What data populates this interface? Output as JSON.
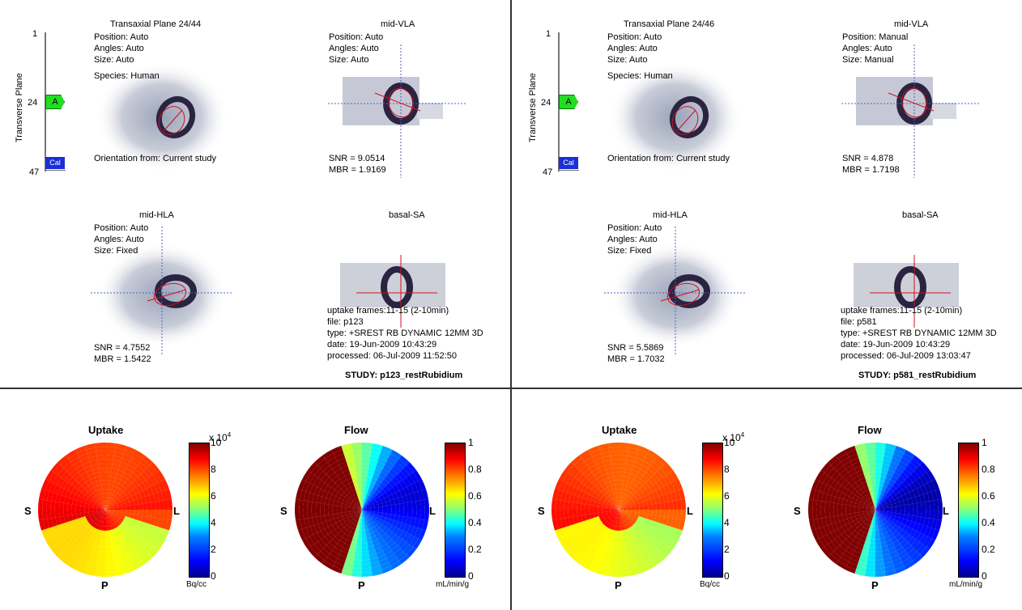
{
  "panels": [
    {
      "slider": {
        "axis_label": "Transverse Plane",
        "top": "1",
        "mid": "24",
        "bottom": "47",
        "marker_a": "A",
        "marker_q": "Cal"
      },
      "transaxial": {
        "title": "Transaxial Plane 24/44",
        "position": "Position: Auto",
        "angles": "Angles: Auto",
        "size": "Size: Auto",
        "species": "Species: Human",
        "orientation": "Orientation from: Current study"
      },
      "vla": {
        "title": "mid-VLA",
        "position": "Position: Auto",
        "angles": "Angles: Auto",
        "size": "Size: Auto",
        "snr": "SNR = 9.0514",
        "mbr": "MBR = 1.9169"
      },
      "hla": {
        "title": "mid-HLA",
        "position": "Position: Auto",
        "angles": "Angles: Auto",
        "size": "Size: Fixed",
        "snr": "SNR = 4.7552",
        "mbr": "MBR = 1.5422"
      },
      "sa": {
        "title": "basal-SA",
        "uptake_frames": "uptake frames:11-15 (2-10min)",
        "file": "file: p123",
        "type": "type: +SREST RB DYNAMIC 12MM 3D",
        "date": "date: 19-Jun-2009 10:43:29",
        "processed": "processed: 06-Jul-2009 11:52:50",
        "study": "STUDY: p123_restRubidium"
      },
      "uptake": {
        "title": "Uptake",
        "exp": "x 10",
        "exp_pow": "4",
        "ticks": [
          "10",
          "8",
          "6",
          "4",
          "2",
          "0"
        ],
        "unit": "Bq/cc"
      },
      "flow": {
        "title": "Flow",
        "ticks": [
          "1",
          "0.8",
          "0.6",
          "0.4",
          "0.2",
          "0"
        ],
        "unit": "mL/min/g"
      },
      "orient": {
        "s": "S",
        "l": "L",
        "p": "P"
      }
    },
    {
      "slider": {
        "axis_label": "Transverse Plane",
        "top": "1",
        "mid": "24",
        "bottom": "47",
        "marker_a": "A",
        "marker_q": "Cal"
      },
      "transaxial": {
        "title": "Transaxial Plane 24/46",
        "position": "Position: Auto",
        "angles": "Angles: Auto",
        "size": "Size: Auto",
        "species": "Species: Human",
        "orientation": "Orientation from: Current study"
      },
      "vla": {
        "title": "mid-VLA",
        "position": "Position: Manual",
        "angles": "Angles: Auto",
        "size": "Size: Manual",
        "snr": "SNR = 4.878",
        "mbr": "MBR = 1.7198"
      },
      "hla": {
        "title": "mid-HLA",
        "position": "Position: Auto",
        "angles": "Angles: Auto",
        "size": "Size: Fixed",
        "snr": "SNR = 5.5869",
        "mbr": "MBR = 1.7032"
      },
      "sa": {
        "title": "basal-SA",
        "uptake_frames": "uptake frames:11-15 (2-10min)",
        "file": "file: p581",
        "type": "type: +SREST RB DYNAMIC 12MM 3D",
        "date": "date: 19-Jun-2009 10:43:29",
        "processed": "processed: 06-Jul-2009 13:03:47",
        "study": "STUDY: p581_restRubidium"
      },
      "uptake": {
        "title": "Uptake",
        "exp": "x 10",
        "exp_pow": "4",
        "ticks": [
          "10",
          "8",
          "6",
          "4",
          "2",
          "0"
        ],
        "unit": "Bq/cc"
      },
      "flow": {
        "title": "Flow",
        "ticks": [
          "1",
          "0.8",
          "0.6",
          "0.4",
          "0.2",
          "0"
        ],
        "unit": "mL/min/g"
      },
      "orient": {
        "s": "S",
        "l": "L",
        "p": "P"
      }
    }
  ],
  "colors": {
    "marker_a": "#22dd22",
    "marker_q": "#1a2fd6",
    "roi": "#d01020",
    "crosshair_blue": "#5060c0"
  }
}
